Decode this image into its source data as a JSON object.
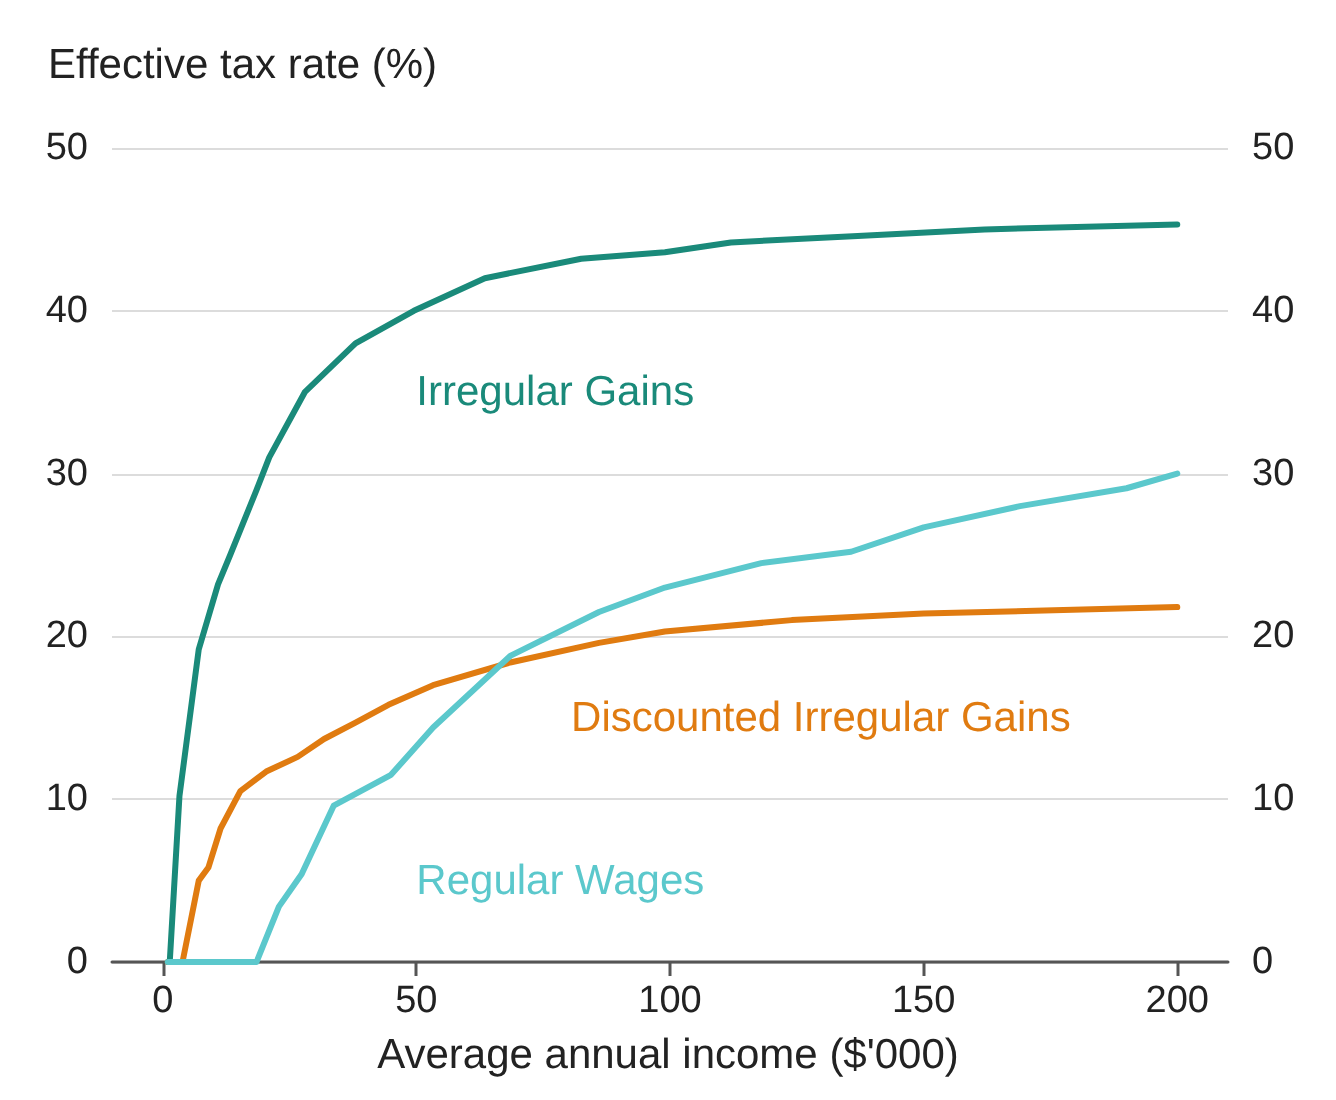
{
  "chart_data": {
    "type": "line",
    "ylabel": "Effective tax rate (%)",
    "xlabel": "Average annual income ($'000)",
    "xlim": [
      -10,
      210
    ],
    "xticks": [
      0,
      50,
      100,
      150,
      200
    ],
    "ylim": [
      0,
      50
    ],
    "yticks": [
      0,
      10,
      20,
      30,
      40,
      50
    ],
    "y2lim": [
      0,
      50
    ],
    "y2ticks": [
      0,
      10,
      20,
      30,
      40,
      50
    ],
    "grid": "y",
    "legend": false,
    "marker": "none",
    "line_style": "solid",
    "series": [
      {
        "name": "Irregular Gains",
        "color": "#1a8a7a",
        "x": [
          1,
          1.4,
          3.3,
          7.1,
          10.9,
          13.3,
          18.5,
          21,
          28,
          38,
          49.5,
          63.5,
          82.5,
          99,
          112,
          137,
          162,
          200
        ],
        "values": [
          0,
          0.1,
          10.2,
          19.2,
          23.2,
          25,
          29,
          31,
          35,
          38,
          40,
          42,
          43.2,
          43.6,
          44.2,
          44.6,
          45,
          45.3
        ]
      },
      {
        "name": "Discounted Irregular Gains",
        "color": "#e07b10",
        "x": [
          1,
          3.9,
          7.1,
          9,
          11.4,
          15.3,
          20.4,
          26.6,
          31.8,
          38,
          44.5,
          53.3,
          68.5,
          86,
          99,
          124,
          150,
          200
        ],
        "values": [
          0,
          0,
          5,
          5.8,
          8.2,
          10.5,
          11.7,
          12.6,
          13.7,
          14.7,
          15.8,
          17,
          18.4,
          19.6,
          20.3,
          21,
          21.4,
          21.8
        ]
      },
      {
        "name": "Regular Wages",
        "color": "#5bc8cc",
        "x": [
          1,
          18.5,
          22.9,
          27.4,
          33.7,
          45,
          53.3,
          68.5,
          86,
          99,
          118,
          135.7,
          150,
          169,
          190,
          200
        ],
        "values": [
          0,
          0,
          3.4,
          5.4,
          9.6,
          11.5,
          14.4,
          18.8,
          21.5,
          23,
          24.5,
          25.2,
          26.7,
          28,
          29.1,
          30
        ]
      }
    ]
  }
}
